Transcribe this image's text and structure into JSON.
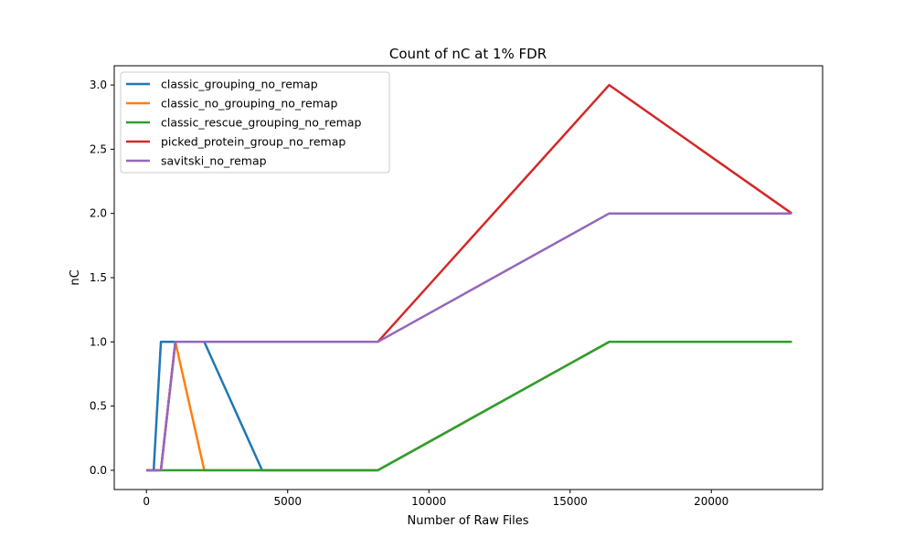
{
  "chart_data": {
    "type": "line",
    "title": "Count of nC at 1% FDR",
    "xlabel": "Number of Raw Files",
    "ylabel": "nC",
    "xlim": [
      -1140,
      23940
    ],
    "ylim": [
      -0.15,
      3.15
    ],
    "xticks": [
      0,
      5000,
      10000,
      15000,
      20000
    ],
    "xtick_labels": [
      "0",
      "5000",
      "10000",
      "15000",
      "20000"
    ],
    "yticks": [
      0.0,
      0.5,
      1.0,
      1.5,
      2.0,
      2.5,
      3.0
    ],
    "ytick_labels": [
      "0.0",
      "0.5",
      "1.0",
      "1.5",
      "2.0",
      "2.5",
      "3.0"
    ],
    "grid": false,
    "legend_position": "upper-left",
    "series": [
      {
        "name": "classic_grouping_no_remap",
        "color": "#1f77b4",
        "x": [
          0,
          256,
          512,
          1024,
          2048,
          4096,
          8192,
          16384,
          22850
        ],
        "y": [
          0,
          0,
          1,
          1,
          1,
          0,
          0,
          1,
          1
        ]
      },
      {
        "name": "classic_no_grouping_no_remap",
        "color": "#ff7f0e",
        "x": [
          0,
          256,
          512,
          1024,
          2048,
          4096,
          8192,
          16384,
          22850
        ],
        "y": [
          0,
          0,
          0,
          1,
          0,
          0,
          0,
          1,
          1
        ]
      },
      {
        "name": "classic_rescue_grouping_no_remap",
        "color": "#2ca02c",
        "x": [
          0,
          256,
          512,
          1024,
          2048,
          4096,
          8192,
          16384,
          22850
        ],
        "y": [
          0,
          0,
          0,
          0,
          0,
          0,
          0,
          1,
          1
        ]
      },
      {
        "name": "picked_protein_group_no_remap",
        "color": "#d62728",
        "x": [
          0,
          256,
          512,
          1024,
          2048,
          4096,
          8192,
          16384,
          22850
        ],
        "y": [
          0,
          0,
          0,
          1,
          1,
          1,
          1,
          3,
          2
        ]
      },
      {
        "name": "savitski_no_remap",
        "color": "#9467bd",
        "x": [
          0,
          256,
          512,
          1024,
          2048,
          4096,
          8192,
          16384,
          22850
        ],
        "y": [
          0,
          0,
          0,
          1,
          1,
          1,
          1,
          2,
          2
        ]
      }
    ]
  }
}
